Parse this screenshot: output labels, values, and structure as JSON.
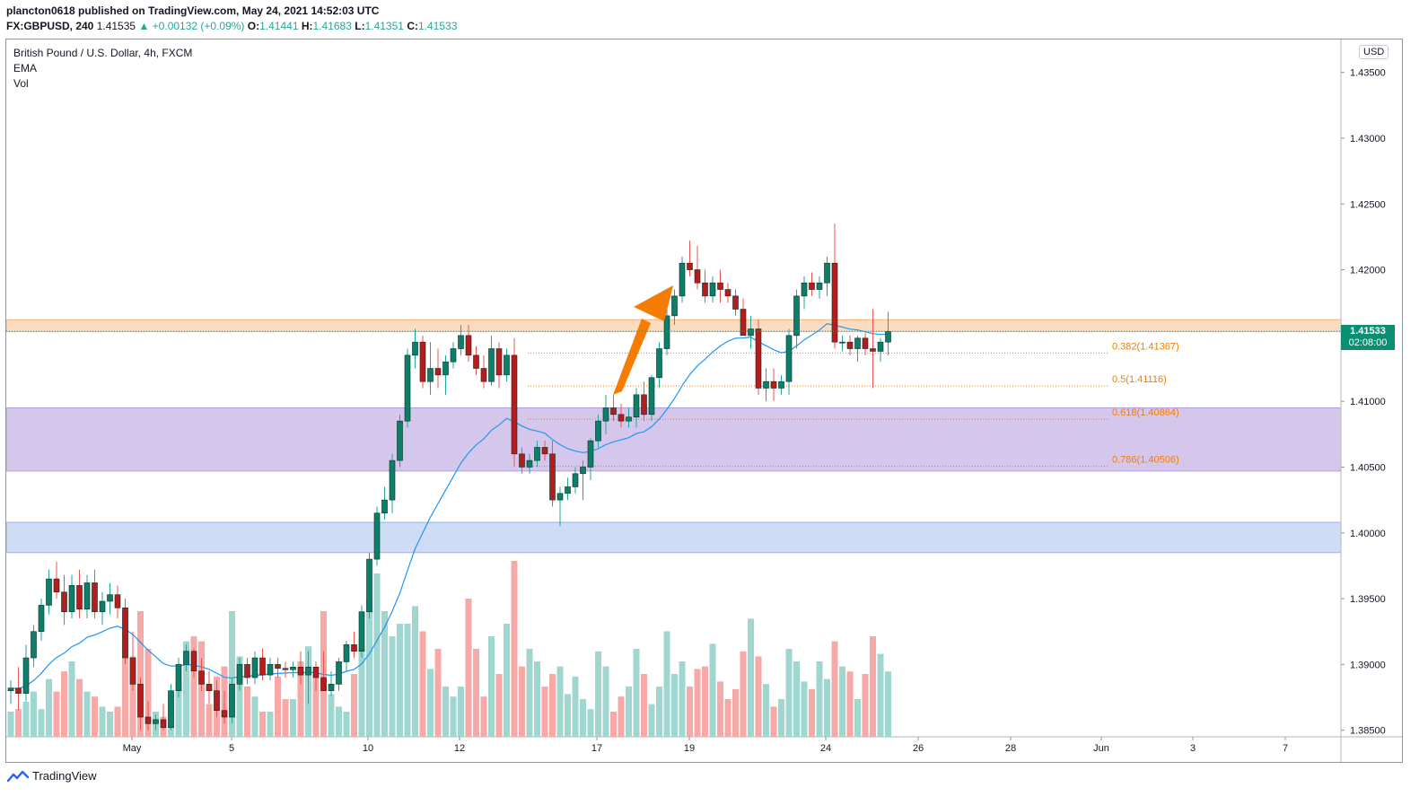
{
  "header": {
    "line1": "plancton0618 published on TradingView.com, May 24, 2021 14:52:03 UTC",
    "symbol": "FX:GBPUSD, 240",
    "last": "1.41535",
    "change": "+0.00132 (+0.09%)",
    "open_label": "O:",
    "open": "1.41441",
    "high_label": "H:",
    "high": "1.41683",
    "low_label": "L:",
    "low": "1.41351",
    "close_label": "C:",
    "close": "1.41533"
  },
  "legend": {
    "title": "British Pound / U.S. Dollar, 4h, FXCM",
    "ema": "EMA",
    "vol": "Vol"
  },
  "price_axis": {
    "currency": "USD",
    "current_price": "1.41533",
    "countdown": "02:08:00"
  },
  "colors": {
    "up": "#26a69a",
    "down": "#ef5350",
    "up_body": "#0d7f68",
    "down_body": "#b71c1c",
    "ema": "#2196f3",
    "resistance_zone": "#fbdcc0",
    "demand_zone": "#d5c7ec",
    "support_zone": "#cfdcf6",
    "fib": "#f57c00",
    "arrow": "#f57c00"
  },
  "footer": {
    "brand": "TradingView"
  },
  "chart_data": {
    "type": "candlestick",
    "title": "British Pound / U.S. Dollar, 4h, FXCM",
    "ylim": [
      1.3845,
      1.4375
    ],
    "y_ticks": [
      "1.43500",
      "1.43000",
      "1.42500",
      "1.42000",
      "1.41500",
      "1.41000",
      "1.40500",
      "1.40000",
      "1.39500",
      "1.39000",
      "1.38500"
    ],
    "x_ticks": [
      "May",
      "5",
      "10",
      "12",
      "17",
      "19",
      "24",
      "26",
      "28",
      "Jun",
      "3",
      "7"
    ],
    "zones": [
      {
        "name": "resistance",
        "from": 1.4153,
        "to": 1.4162
      },
      {
        "name": "demand",
        "from": 1.4047,
        "to": 1.4095
      },
      {
        "name": "support",
        "from": 1.3985,
        "to": 1.4008
      }
    ],
    "fib_levels": [
      {
        "label": "0.382(1.41367)",
        "value": 1.41367
      },
      {
        "label": "0.5(1.41116)",
        "value": 1.41116
      },
      {
        "label": "0.618(1.40864)",
        "value": 1.40864
      },
      {
        "label": "0.786(1.40506)",
        "value": 1.40506
      }
    ],
    "candles": [
      [
        1.388,
        1.3888,
        1.387,
        1.3882,
        1.0
      ],
      [
        1.3882,
        1.3898,
        1.3865,
        1.3878,
        1.1
      ],
      [
        1.3878,
        1.3915,
        1.3872,
        1.3905,
        1.4
      ],
      [
        1.3905,
        1.393,
        1.3898,
        1.3925,
        1.8
      ],
      [
        1.3925,
        1.395,
        1.3918,
        1.3945,
        1.1
      ],
      [
        1.3945,
        1.3972,
        1.3938,
        1.3965,
        2.3
      ],
      [
        1.3965,
        1.3978,
        1.395,
        1.3955,
        1.8
      ],
      [
        1.3955,
        1.3968,
        1.393,
        1.394,
        2.6
      ],
      [
        1.394,
        1.3968,
        1.3935,
        1.396,
        3.0
      ],
      [
        1.396,
        1.3972,
        1.3935,
        1.3942,
        2.3
      ],
      [
        1.3942,
        1.3968,
        1.3935,
        1.3962,
        1.8
      ],
      [
        1.3962,
        1.3972,
        1.3935,
        1.394,
        1.6
      ],
      [
        1.394,
        1.3955,
        1.393,
        1.3948,
        1.2
      ],
      [
        1.3948,
        1.3962,
        1.3938,
        1.3953,
        1.0
      ],
      [
        1.3953,
        1.396,
        1.3935,
        1.3943,
        1.2
      ],
      [
        1.3943,
        1.395,
        1.39,
        1.3905,
        5.0
      ],
      [
        1.3905,
        1.3925,
        1.388,
        1.3885,
        3.2
      ],
      [
        1.3885,
        1.389,
        1.385,
        1.386,
        5.0
      ],
      [
        1.386,
        1.3872,
        1.385,
        1.3855,
        3.5
      ],
      [
        1.3855,
        1.3862,
        1.385,
        1.3858,
        1.0
      ],
      [
        1.3858,
        1.387,
        1.385,
        1.3852,
        0.8
      ],
      [
        1.3852,
        1.3885,
        1.385,
        1.388,
        1.5
      ],
      [
        1.388,
        1.3905,
        1.3875,
        1.39,
        2.2
      ],
      [
        1.39,
        1.3915,
        1.3895,
        1.391,
        3.8
      ],
      [
        1.391,
        1.3912,
        1.389,
        1.3895,
        4.0
      ],
      [
        1.3895,
        1.3905,
        1.388,
        1.3885,
        3.8
      ],
      [
        1.3885,
        1.3895,
        1.387,
        1.388,
        1.3
      ],
      [
        1.388,
        1.3888,
        1.386,
        1.3865,
        2.4
      ],
      [
        1.3865,
        1.388,
        1.3855,
        1.386,
        2.8
      ],
      [
        1.386,
        1.389,
        1.3855,
        1.3885,
        5.0
      ],
      [
        1.3885,
        1.3905,
        1.388,
        1.39,
        3.2
      ],
      [
        1.39,
        1.3905,
        1.3885,
        1.389,
        2.0
      ],
      [
        1.389,
        1.391,
        1.3885,
        1.3905,
        1.6
      ],
      [
        1.3905,
        1.3912,
        1.3888,
        1.3892,
        1.0
      ],
      [
        1.3892,
        1.3905,
        1.3888,
        1.39,
        1.0
      ],
      [
        1.39,
        1.3905,
        1.389,
        1.3897,
        2.4
      ],
      [
        1.3897,
        1.3902,
        1.389,
        1.3896,
        1.5
      ],
      [
        1.3896,
        1.3902,
        1.389,
        1.3898,
        1.5
      ],
      [
        1.3898,
        1.391,
        1.3885,
        1.3892,
        3.0
      ],
      [
        1.3892,
        1.391,
        1.387,
        1.3898,
        3.6
      ],
      [
        1.3898,
        1.3902,
        1.388,
        1.389,
        2.5
      ],
      [
        1.389,
        1.391,
        1.3885,
        1.388,
        5.0
      ],
      [
        1.388,
        1.3895,
        1.3876,
        1.3885,
        1.7
      ],
      [
        1.3885,
        1.3905,
        1.388,
        1.3902,
        1.2
      ],
      [
        1.3902,
        1.3918,
        1.3895,
        1.3915,
        1.0
      ],
      [
        1.3915,
        1.3925,
        1.3905,
        1.391,
        2.5
      ],
      [
        1.391,
        1.3945,
        1.3905,
        1.394,
        3.5
      ],
      [
        1.394,
        1.3985,
        1.3935,
        1.398,
        5.5
      ],
      [
        1.398,
        1.402,
        1.3975,
        1.4015,
        6.5
      ],
      [
        1.4015,
        1.4035,
        1.401,
        1.4025,
        5.0
      ],
      [
        1.4025,
        1.406,
        1.4015,
        1.4055,
        4.0
      ],
      [
        1.4055,
        1.409,
        1.405,
        1.4085,
        4.5
      ],
      [
        1.4085,
        1.414,
        1.408,
        1.4135,
        4.5
      ],
      [
        1.4135,
        1.4155,
        1.4125,
        1.4145,
        5.2
      ],
      [
        1.4145,
        1.415,
        1.411,
        1.4115,
        4.2
      ],
      [
        1.4115,
        1.4145,
        1.4105,
        1.4125,
        2.7
      ],
      [
        1.4125,
        1.414,
        1.411,
        1.412,
        3.5
      ],
      [
        1.412,
        1.4135,
        1.4105,
        1.413,
        2.0
      ],
      [
        1.413,
        1.4145,
        1.4125,
        1.414,
        1.6
      ],
      [
        1.414,
        1.4158,
        1.4135,
        1.415,
        2.0
      ],
      [
        1.415,
        1.4158,
        1.413,
        1.4135,
        5.5
      ],
      [
        1.4135,
        1.4142,
        1.412,
        1.4125,
        3.5
      ],
      [
        1.4125,
        1.4135,
        1.411,
        1.4115,
        1.6
      ],
      [
        1.4115,
        1.415,
        1.4112,
        1.414,
        4.0
      ],
      [
        1.414,
        1.4145,
        1.411,
        1.412,
        2.5
      ],
      [
        1.412,
        1.414,
        1.4115,
        1.4135,
        4.5
      ],
      [
        1.4135,
        1.4148,
        1.405,
        1.406,
        7.0
      ],
      [
        1.406,
        1.4065,
        1.4045,
        1.405,
        2.8
      ],
      [
        1.405,
        1.406,
        1.4045,
        1.4055,
        3.5
      ],
      [
        1.4055,
        1.407,
        1.405,
        1.4065,
        3.0
      ],
      [
        1.4065,
        1.407,
        1.4055,
        1.406,
        2.0
      ],
      [
        1.406,
        1.407,
        1.402,
        1.4025,
        2.5
      ],
      [
        1.4025,
        1.4035,
        1.4005,
        1.403,
        2.8
      ],
      [
        1.403,
        1.4042,
        1.4025,
        1.4035,
        1.7
      ],
      [
        1.4035,
        1.405,
        1.403,
        1.4045,
        2.4
      ],
      [
        1.4045,
        1.4055,
        1.4025,
        1.405,
        1.5
      ],
      [
        1.405,
        1.4072,
        1.404,
        1.407,
        1.1
      ],
      [
        1.407,
        1.409,
        1.4065,
        1.4085,
        3.4
      ],
      [
        1.4085,
        1.4105,
        1.4075,
        1.4095,
        2.8
      ],
      [
        1.4095,
        1.4105,
        1.4085,
        1.409,
        1.0
      ],
      [
        1.409,
        1.4098,
        1.408,
        1.4085,
        1.6
      ],
      [
        1.4085,
        1.4095,
        1.408,
        1.4088,
        2.0
      ],
      [
        1.4088,
        1.411,
        1.408,
        1.4105,
        3.5
      ],
      [
        1.4105,
        1.4115,
        1.4085,
        1.409,
        2.5
      ],
      [
        1.409,
        1.412,
        1.4085,
        1.4118,
        1.3
      ],
      [
        1.4118,
        1.4145,
        1.411,
        1.414,
        2.0
      ],
      [
        1.414,
        1.4175,
        1.4135,
        1.4165,
        4.2
      ],
      [
        1.4165,
        1.4185,
        1.4158,
        1.418,
        2.5
      ],
      [
        1.418,
        1.421,
        1.4175,
        1.4205,
        3.0
      ],
      [
        1.4205,
        1.4222,
        1.4195,
        1.42,
        2.0
      ],
      [
        1.42,
        1.4218,
        1.4185,
        1.419,
        2.7
      ],
      [
        1.419,
        1.42,
        1.4175,
        1.418,
        2.8
      ],
      [
        1.418,
        1.4195,
        1.4175,
        1.419,
        3.7
      ],
      [
        1.419,
        1.42,
        1.4175,
        1.4185,
        2.2
      ],
      [
        1.4185,
        1.419,
        1.4175,
        1.418,
        1.5
      ],
      [
        1.418,
        1.4185,
        1.4165,
        1.417,
        1.9
      ],
      [
        1.417,
        1.4178,
        1.415,
        1.415,
        3.4
      ],
      [
        1.415,
        1.4165,
        1.414,
        1.4155,
        4.7
      ],
      [
        1.4155,
        1.4162,
        1.4105,
        1.411,
        3.2
      ],
      [
        1.411,
        1.4125,
        1.41,
        1.4115,
        2.1
      ],
      [
        1.4115,
        1.4125,
        1.41,
        1.411,
        1.2
      ],
      [
        1.411,
        1.412,
        1.4105,
        1.4115,
        1.5
      ],
      [
        1.4115,
        1.4155,
        1.4105,
        1.415,
        3.5
      ],
      [
        1.415,
        1.4185,
        1.414,
        1.418,
        3.0
      ],
      [
        1.418,
        1.4195,
        1.417,
        1.419,
        2.2
      ],
      [
        1.419,
        1.4198,
        1.418,
        1.4185,
        1.9
      ],
      [
        1.4185,
        1.4195,
        1.4178,
        1.419,
        3.0
      ],
      [
        1.419,
        1.421,
        1.418,
        1.4205,
        2.3
      ],
      [
        1.4205,
        1.4235,
        1.414,
        1.4145,
        3.8
      ],
      [
        1.4145,
        1.415,
        1.4138,
        1.4145,
        2.8
      ],
      [
        1.4145,
        1.415,
        1.4135,
        1.414,
        2.6
      ],
      [
        1.414,
        1.415,
        1.413,
        1.4148,
        1.5
      ],
      [
        1.4148,
        1.4152,
        1.4135,
        1.414,
        2.5
      ],
      [
        1.414,
        1.417,
        1.411,
        1.4138,
        4.0
      ],
      [
        1.4138,
        1.4148,
        1.413,
        1.4145,
        3.3
      ],
      [
        1.4145,
        1.4168,
        1.4135,
        1.4153,
        2.6
      ]
    ],
    "ema_series": "EMA of close (period ~20)",
    "volume_scale": "relative"
  }
}
